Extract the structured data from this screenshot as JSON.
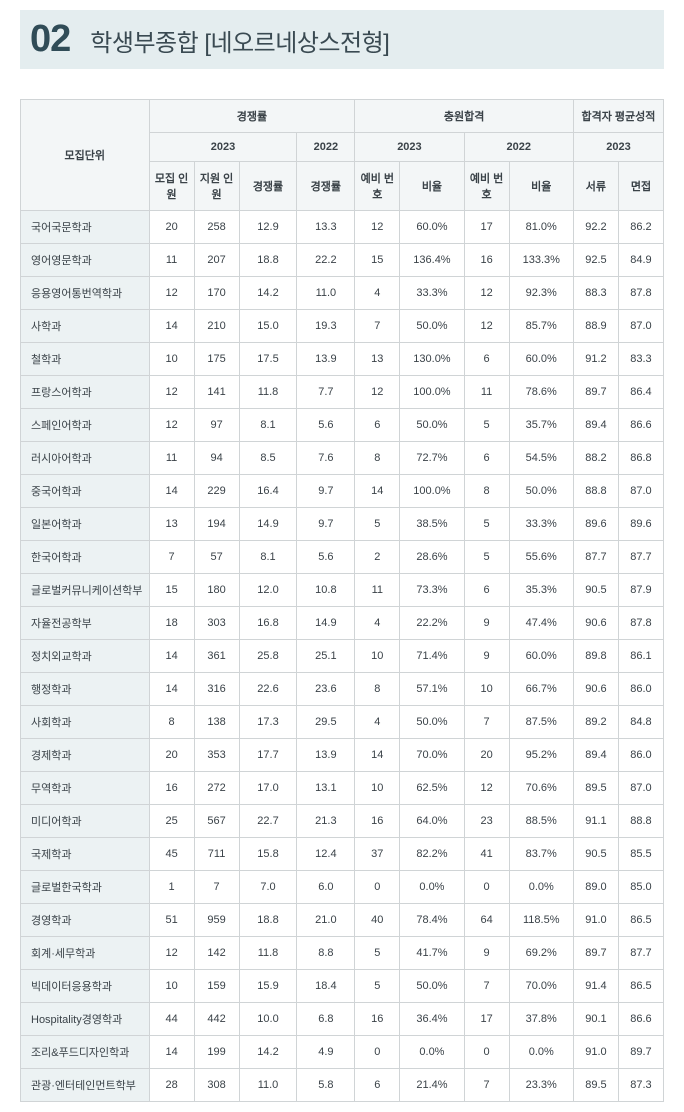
{
  "header": {
    "number": "02",
    "title": "학생부종합 [네오르네상스전형]"
  },
  "table": {
    "headers": {
      "unit": "모집단위",
      "competition": "경쟁률",
      "chungwon": "충원합격",
      "avgscore": "합격자 평균성적",
      "y2023": "2023",
      "y2022": "2022",
      "recruit": "모집\n인원",
      "applicants": "지원\n인원",
      "rate": "경쟁률",
      "rate2": "경쟁률",
      "reserve": "예비\n번호",
      "ratio": "비율",
      "reserve2": "예비\n번호",
      "ratio2": "비율",
      "docs": "서류",
      "interview": "면접"
    },
    "rows": [
      {
        "dept": "국어국문학과",
        "recruit": "20",
        "apps": "258",
        "rate": "12.9",
        "rate22": "13.3",
        "res23": "12",
        "ratio23": "60.0%",
        "res22": "17",
        "ratio22": "81.0%",
        "doc": "92.2",
        "iv": "86.2"
      },
      {
        "dept": "영어영문학과",
        "recruit": "11",
        "apps": "207",
        "rate": "18.8",
        "rate22": "22.2",
        "res23": "15",
        "ratio23": "136.4%",
        "res22": "16",
        "ratio22": "133.3%",
        "doc": "92.5",
        "iv": "84.9"
      },
      {
        "dept": "응용영어통번역학과",
        "recruit": "12",
        "apps": "170",
        "rate": "14.2",
        "rate22": "11.0",
        "res23": "4",
        "ratio23": "33.3%",
        "res22": "12",
        "ratio22": "92.3%",
        "doc": "88.3",
        "iv": "87.8"
      },
      {
        "dept": "사학과",
        "recruit": "14",
        "apps": "210",
        "rate": "15.0",
        "rate22": "19.3",
        "res23": "7",
        "ratio23": "50.0%",
        "res22": "12",
        "ratio22": "85.7%",
        "doc": "88.9",
        "iv": "87.0"
      },
      {
        "dept": "철학과",
        "recruit": "10",
        "apps": "175",
        "rate": "17.5",
        "rate22": "13.9",
        "res23": "13",
        "ratio23": "130.0%",
        "res22": "6",
        "ratio22": "60.0%",
        "doc": "91.2",
        "iv": "83.3"
      },
      {
        "dept": "프랑스어학과",
        "recruit": "12",
        "apps": "141",
        "rate": "11.8",
        "rate22": "7.7",
        "res23": "12",
        "ratio23": "100.0%",
        "res22": "11",
        "ratio22": "78.6%",
        "doc": "89.7",
        "iv": "86.4"
      },
      {
        "dept": "스페인어학과",
        "recruit": "12",
        "apps": "97",
        "rate": "8.1",
        "rate22": "5.6",
        "res23": "6",
        "ratio23": "50.0%",
        "res22": "5",
        "ratio22": "35.7%",
        "doc": "89.4",
        "iv": "86.6"
      },
      {
        "dept": "러시아어학과",
        "recruit": "11",
        "apps": "94",
        "rate": "8.5",
        "rate22": "7.6",
        "res23": "8",
        "ratio23": "72.7%",
        "res22": "6",
        "ratio22": "54.5%",
        "doc": "88.2",
        "iv": "86.8"
      },
      {
        "dept": "중국어학과",
        "recruit": "14",
        "apps": "229",
        "rate": "16.4",
        "rate22": "9.7",
        "res23": "14",
        "ratio23": "100.0%",
        "res22": "8",
        "ratio22": "50.0%",
        "doc": "88.8",
        "iv": "87.0"
      },
      {
        "dept": "일본어학과",
        "recruit": "13",
        "apps": "194",
        "rate": "14.9",
        "rate22": "9.7",
        "res23": "5",
        "ratio23": "38.5%",
        "res22": "5",
        "ratio22": "33.3%",
        "doc": "89.6",
        "iv": "89.6"
      },
      {
        "dept": "한국어학과",
        "recruit": "7",
        "apps": "57",
        "rate": "8.1",
        "rate22": "5.6",
        "res23": "2",
        "ratio23": "28.6%",
        "res22": "5",
        "ratio22": "55.6%",
        "doc": "87.7",
        "iv": "87.7"
      },
      {
        "dept": "글로벌커뮤니케이션학부",
        "recruit": "15",
        "apps": "180",
        "rate": "12.0",
        "rate22": "10.8",
        "res23": "11",
        "ratio23": "73.3%",
        "res22": "6",
        "ratio22": "35.3%",
        "doc": "90.5",
        "iv": "87.9"
      },
      {
        "dept": "자율전공학부",
        "recruit": "18",
        "apps": "303",
        "rate": "16.8",
        "rate22": "14.9",
        "res23": "4",
        "ratio23": "22.2%",
        "res22": "9",
        "ratio22": "47.4%",
        "doc": "90.6",
        "iv": "87.8"
      },
      {
        "dept": "정치외교학과",
        "recruit": "14",
        "apps": "361",
        "rate": "25.8",
        "rate22": "25.1",
        "res23": "10",
        "ratio23": "71.4%",
        "res22": "9",
        "ratio22": "60.0%",
        "doc": "89.8",
        "iv": "86.1"
      },
      {
        "dept": "행정학과",
        "recruit": "14",
        "apps": "316",
        "rate": "22.6",
        "rate22": "23.6",
        "res23": "8",
        "ratio23": "57.1%",
        "res22": "10",
        "ratio22": "66.7%",
        "doc": "90.6",
        "iv": "86.0"
      },
      {
        "dept": "사회학과",
        "recruit": "8",
        "apps": "138",
        "rate": "17.3",
        "rate22": "29.5",
        "res23": "4",
        "ratio23": "50.0%",
        "res22": "7",
        "ratio22": "87.5%",
        "doc": "89.2",
        "iv": "84.8"
      },
      {
        "dept": "경제학과",
        "recruit": "20",
        "apps": "353",
        "rate": "17.7",
        "rate22": "13.9",
        "res23": "14",
        "ratio23": "70.0%",
        "res22": "20",
        "ratio22": "95.2%",
        "doc": "89.4",
        "iv": "86.0"
      },
      {
        "dept": "무역학과",
        "recruit": "16",
        "apps": "272",
        "rate": "17.0",
        "rate22": "13.1",
        "res23": "10",
        "ratio23": "62.5%",
        "res22": "12",
        "ratio22": "70.6%",
        "doc": "89.5",
        "iv": "87.0"
      },
      {
        "dept": "미디어학과",
        "recruit": "25",
        "apps": "567",
        "rate": "22.7",
        "rate22": "21.3",
        "res23": "16",
        "ratio23": "64.0%",
        "res22": "23",
        "ratio22": "88.5%",
        "doc": "91.1",
        "iv": "88.8"
      },
      {
        "dept": "국제학과",
        "recruit": "45",
        "apps": "711",
        "rate": "15.8",
        "rate22": "12.4",
        "res23": "37",
        "ratio23": "82.2%",
        "res22": "41",
        "ratio22": "83.7%",
        "doc": "90.5",
        "iv": "85.5"
      },
      {
        "dept": "글로벌한국학과",
        "recruit": "1",
        "apps": "7",
        "rate": "7.0",
        "rate22": "6.0",
        "res23": "0",
        "ratio23": "0.0%",
        "res22": "0",
        "ratio22": "0.0%",
        "doc": "89.0",
        "iv": "85.0"
      },
      {
        "dept": "경영학과",
        "recruit": "51",
        "apps": "959",
        "rate": "18.8",
        "rate22": "21.0",
        "res23": "40",
        "ratio23": "78.4%",
        "res22": "64",
        "ratio22": "118.5%",
        "doc": "91.0",
        "iv": "86.5"
      },
      {
        "dept": "회계·세무학과",
        "recruit": "12",
        "apps": "142",
        "rate": "11.8",
        "rate22": "8.8",
        "res23": "5",
        "ratio23": "41.7%",
        "res22": "9",
        "ratio22": "69.2%",
        "doc": "89.7",
        "iv": "87.7"
      },
      {
        "dept": "빅데이터응용학과",
        "recruit": "10",
        "apps": "159",
        "rate": "15.9",
        "rate22": "18.4",
        "res23": "5",
        "ratio23": "50.0%",
        "res22": "7",
        "ratio22": "70.0%",
        "doc": "91.4",
        "iv": "86.5"
      },
      {
        "dept": "Hospitality경영학과",
        "recruit": "44",
        "apps": "442",
        "rate": "10.0",
        "rate22": "6.8",
        "res23": "16",
        "ratio23": "36.4%",
        "res22": "17",
        "ratio22": "37.8%",
        "doc": "90.1",
        "iv": "86.6"
      },
      {
        "dept": "조리&푸드디자인학과",
        "recruit": "14",
        "apps": "199",
        "rate": "14.2",
        "rate22": "4.9",
        "res23": "0",
        "ratio23": "0.0%",
        "res22": "0",
        "ratio22": "0.0%",
        "doc": "91.0",
        "iv": "89.7"
      },
      {
        "dept": "관광·엔터테인먼트학부",
        "recruit": "28",
        "apps": "308",
        "rate": "11.0",
        "rate22": "5.8",
        "res23": "6",
        "ratio23": "21.4%",
        "res22": "7",
        "ratio22": "23.3%",
        "doc": "89.5",
        "iv": "87.3"
      }
    ]
  }
}
